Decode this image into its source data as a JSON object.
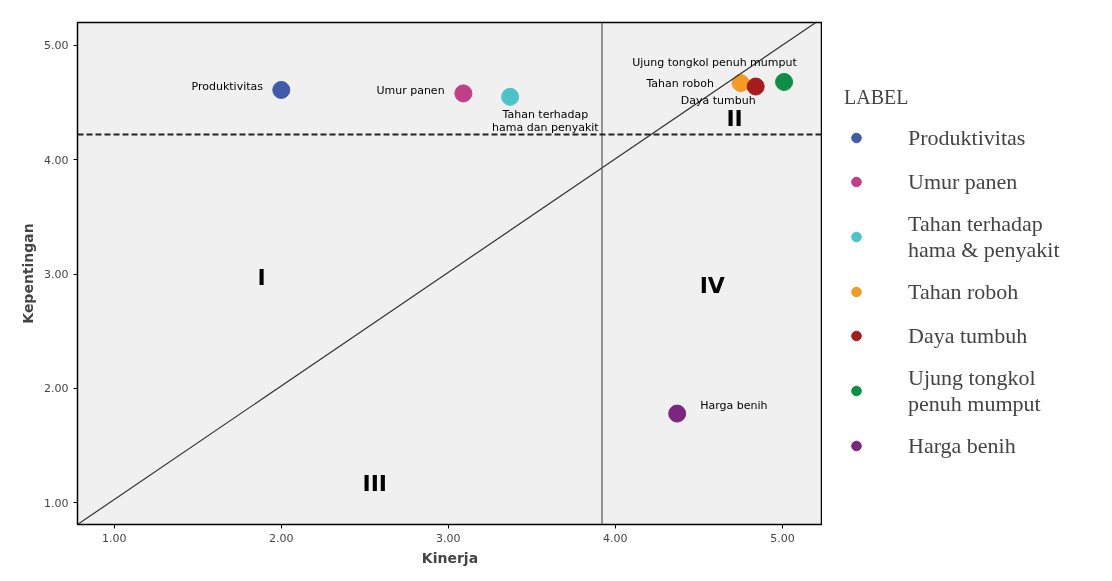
{
  "chart_data": {
    "type": "scatter",
    "xlabel": "Kinerja",
    "ylabel": "Kepentingan",
    "legend_title": "LABEL",
    "legend": "right",
    "marker": "circle",
    "grid": false,
    "xlim": [
      0.78,
      5.24
    ],
    "ylim": [
      0.81,
      5.2
    ],
    "xticks": [
      {
        "value": 1,
        "label": "1.00"
      },
      {
        "value": 2,
        "label": "2.00"
      },
      {
        "value": 3,
        "label": "3.00"
      },
      {
        "value": 4,
        "label": "4.00"
      },
      {
        "value": 5,
        "label": "5.00"
      }
    ],
    "yticks": [
      {
        "value": 1,
        "label": "1.00"
      },
      {
        "value": 2,
        "label": "2.00"
      },
      {
        "value": 3,
        "label": "3.00"
      },
      {
        "value": 4,
        "label": "4.00"
      },
      {
        "value": 5,
        "label": "5.00"
      }
    ],
    "series": [
      {
        "name": "Produktivitas",
        "color": "#3f5cab",
        "x": [
          2.0
        ],
        "values": [
          4.61
        ]
      },
      {
        "name": "Umur panen",
        "color": "#c13f86",
        "x": [
          3.09
        ],
        "values": [
          4.58
        ]
      },
      {
        "name": "Tahan terhadap\nhama & penyakit",
        "color": "#4cc3c9",
        "x": [
          3.37
        ],
        "values": [
          4.55
        ]
      },
      {
        "name": "Tahan roboh",
        "color": "#f59a23",
        "x": [
          4.75
        ],
        "values": [
          4.67
        ]
      },
      {
        "name": "Daya tumbuh",
        "color": "#a51c1c",
        "x": [
          4.84
        ],
        "values": [
          4.64
        ]
      },
      {
        "name": "Ujung tongkol\npenuh mumput",
        "color": "#0f8f46",
        "x": [
          5.01
        ],
        "values": [
          4.68
        ]
      },
      {
        "name": "Harga benih",
        "color": "#7b2780",
        "x": [
          4.37
        ],
        "values": [
          1.78
        ]
      },
      {
        "type": "line",
        "color": "#333333",
        "line_style": "solid",
        "marker": "none",
        "x": [
          0.78,
          5.2
        ],
        "values": [
          0.81,
          5.2
        ]
      }
    ],
    "ref_lines": [
      {
        "axis": "x",
        "value": 3.92,
        "color": "#555555",
        "line_style": "solid"
      },
      {
        "axis": "y",
        "value": 4.22,
        "color": "#222222",
        "line_style": "dashed"
      }
    ],
    "annotations": [
      "Produktivitas",
      "Umur panen",
      "Tahan terhadap\nhama dan penyakit",
      "Ujung tongkol penuh mumput",
      "Tahan roboh",
      "Daya tumbuh",
      "Harga benih",
      "I",
      "II",
      "III",
      "IV"
    ]
  }
}
